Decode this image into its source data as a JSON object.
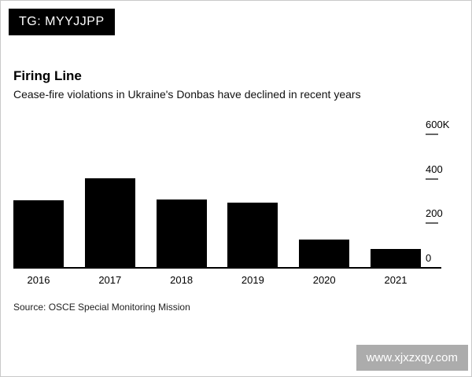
{
  "tag_box": {
    "label": "TG: MYYJJPP"
  },
  "header": {
    "title": "Firing Line",
    "subtitle": "Cease-fire violations in Ukraine's Donbas have declined in recent years"
  },
  "source": "Source: OSCE Special Monitoring Mission",
  "watermark": {
    "text": "www.xjxzxqy.com"
  },
  "colors": {
    "bar": "#000000",
    "axis": "#000000",
    "tick": "#666666"
  },
  "chart_data": {
    "type": "bar",
    "title": "Firing Line",
    "subtitle": "Cease-fire violations in Ukraine's Donbas have declined in recent years",
    "categories": [
      "2016",
      "2017",
      "2018",
      "2019",
      "2020",
      "2021"
    ],
    "values": [
      300000,
      400000,
      305000,
      290000,
      125000,
      80000
    ],
    "xlabel": "",
    "ylabel": "",
    "ylim": [
      0,
      600000
    ],
    "yticks": [
      {
        "label": "0",
        "value": 0
      },
      {
        "label": "200",
        "value": 200000
      },
      {
        "label": "400",
        "value": 400000
      },
      {
        "label": "600K",
        "value": 600000
      }
    ],
    "axis_side": "right",
    "grid": false,
    "legend": "none",
    "source": "Source: OSCE Special Monitoring Mission"
  }
}
